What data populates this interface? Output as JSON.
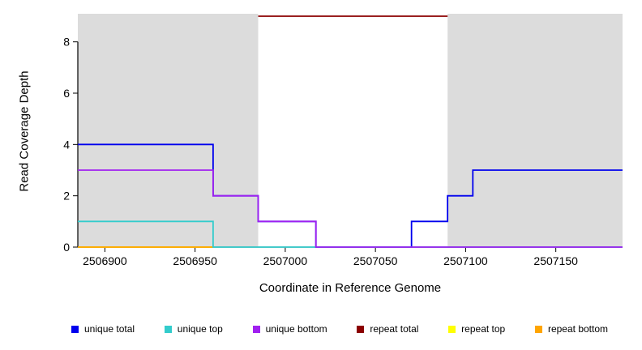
{
  "chart_data": {
    "type": "line",
    "step": true,
    "xlabel": "Coordinate in Reference Genome",
    "ylabel": "Read Coverage Depth",
    "xlim": [
      2506885,
      2507187
    ],
    "ylim": [
      0,
      9
    ],
    "x_ticks": [
      2506900,
      2506950,
      2507000,
      2507050,
      2507100,
      2507150
    ],
    "y_ticks": [
      0,
      2,
      4,
      6,
      8
    ],
    "grid": false,
    "background_shading": {
      "color": "#DCDCDC",
      "regions": [
        [
          2506885,
          2506985
        ],
        [
          2507090,
          2507187
        ]
      ]
    },
    "series": [
      {
        "name": "repeat top",
        "color": "#FFFF00",
        "points": [
          [
            2506885,
            0
          ],
          [
            2506960,
            0
          ]
        ]
      },
      {
        "name": "repeat bottom",
        "color": "#FFA500",
        "points": [
          [
            2506885,
            0
          ],
          [
            2506960,
            0
          ]
        ]
      },
      {
        "name": "unique total",
        "color": "#0000EE",
        "points": [
          [
            2506885,
            4
          ],
          [
            2506960,
            4
          ],
          [
            2506960,
            2
          ],
          [
            2506985,
            2
          ],
          [
            2506985,
            1
          ],
          [
            2507017,
            1
          ],
          [
            2507017,
            0
          ],
          [
            2507070,
            0
          ],
          [
            2507070,
            1
          ],
          [
            2507090,
            1
          ],
          [
            2507090,
            2
          ],
          [
            2507104,
            2
          ],
          [
            2507104,
            3
          ],
          [
            2507187,
            3
          ]
        ]
      },
      {
        "name": "unique top",
        "color": "#33CCCC",
        "points": [
          [
            2506885,
            1
          ],
          [
            2506960,
            1
          ],
          [
            2506960,
            0
          ],
          [
            2507187,
            0
          ]
        ]
      },
      {
        "name": "unique bottom",
        "color": "#A020F0",
        "points": [
          [
            2506885,
            3
          ],
          [
            2506960,
            3
          ],
          [
            2506960,
            2
          ],
          [
            2506985,
            2
          ],
          [
            2506985,
            1
          ],
          [
            2507017,
            1
          ],
          [
            2507017,
            0
          ],
          [
            2507187,
            0
          ]
        ]
      },
      {
        "name": "repeat total",
        "color": "#8B0000",
        "points": [
          [
            2506985,
            9
          ],
          [
            2507090,
            9
          ]
        ]
      }
    ],
    "legend": {
      "position": "bottom",
      "items": [
        {
          "label": "unique total",
          "color": "#0000EE"
        },
        {
          "label": "unique top",
          "color": "#33CCCC"
        },
        {
          "label": "unique bottom",
          "color": "#A020F0"
        },
        {
          "label": "repeat total",
          "color": "#8B0000"
        },
        {
          "label": "repeat top",
          "color": "#FFFF00"
        },
        {
          "label": "repeat bottom",
          "color": "#FFA500"
        }
      ]
    }
  }
}
